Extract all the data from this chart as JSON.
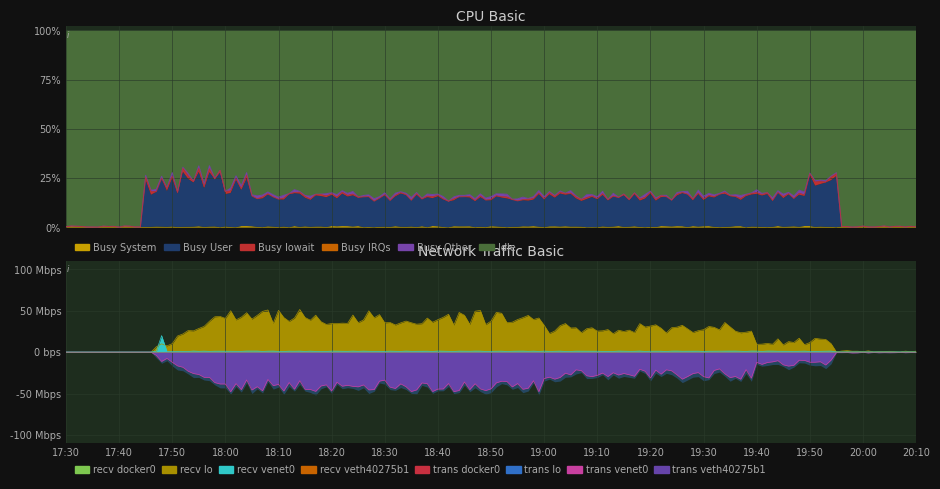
{
  "background_color": "#111111",
  "plot_bg_cpu": "#1e2d1e",
  "plot_bg_net": "#1a1a1a",
  "grid_color": "#2a3a2a",
  "cpu_title": "CPU Basic",
  "cpu_yticks": [
    "0%",
    "25%",
    "50%",
    "75%",
    "100%"
  ],
  "cpu_ytick_vals": [
    0,
    25,
    50,
    75,
    100
  ],
  "cpu_ylim": [
    0,
    102
  ],
  "net_title": "Network Traffic Basic",
  "net_yticks": [
    "-100 Mbps",
    "-50 Mbps",
    "0 bps",
    "50 Mbps",
    "100 Mbps"
  ],
  "net_ytick_vals": [
    -100,
    -50,
    0,
    50,
    100
  ],
  "net_ylim": [
    -110,
    110
  ],
  "xtick_labels": [
    "17:30",
    "17:40",
    "17:50",
    "18:00",
    "18:10",
    "18:20",
    "18:30",
    "18:40",
    "18:50",
    "19:00",
    "19:10",
    "19:20",
    "19:30",
    "19:40",
    "19:50",
    "20:00",
    "20:10"
  ],
  "xtick_positions": [
    0,
    10,
    20,
    30,
    40,
    50,
    60,
    70,
    80,
    90,
    100,
    110,
    120,
    130,
    140,
    150,
    160
  ],
  "colors": {
    "busy_system": "#c8a000",
    "busy_user": "#1f3d6e",
    "busy_iowait": "#c03030",
    "busy_irqs": "#c86400",
    "busy_other": "#7744aa",
    "idle": "#4a6e3a",
    "recv_docker0": "#7ec850",
    "recv_lo": "#a89000",
    "recv_venet0": "#30c8c8",
    "recv_veth": "#c86400",
    "trans_docker0": "#c83040",
    "trans_lo": "#3070c8",
    "trans_venet0": "#c840a0",
    "trans_veth": "#6644aa"
  },
  "cpu_legend": [
    {
      "label": "Busy System",
      "color": "#c8a000"
    },
    {
      "label": "Busy User",
      "color": "#1f3d6e"
    },
    {
      "label": "Busy Iowait",
      "color": "#c03030"
    },
    {
      "label": "Busy IRQs",
      "color": "#c86400"
    },
    {
      "label": "Busy Other",
      "color": "#7744aa"
    },
    {
      "label": "Idle",
      "color": "#4a6e3a"
    }
  ],
  "net_legend": [
    {
      "label": "recv docker0",
      "color": "#7ec850"
    },
    {
      "label": "recv lo",
      "color": "#a89000"
    },
    {
      "label": "recv venet0",
      "color": "#30c8c8"
    },
    {
      "label": "recv veth40275b1",
      "color": "#c86400"
    },
    {
      "label": "trans docker0",
      "color": "#c83040"
    },
    {
      "label": "trans lo",
      "color": "#3070c8"
    },
    {
      "label": "trans venet0",
      "color": "#c840a0"
    },
    {
      "label": "trans veth40275b1",
      "color": "#6644aa"
    }
  ],
  "tick_color": "#aaaaaa",
  "title_color": "#cccccc",
  "info_char": "i"
}
